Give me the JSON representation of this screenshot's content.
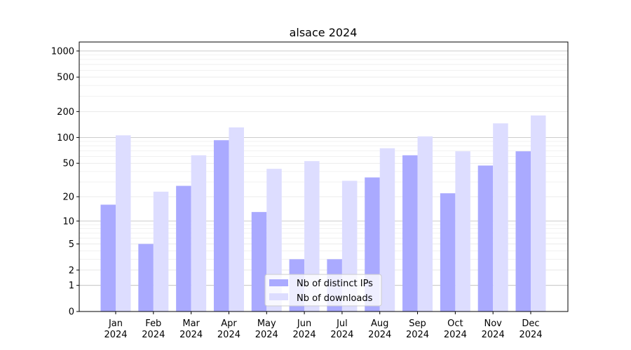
{
  "chart_data": {
    "type": "bar",
    "title": "alsace 2024",
    "xlabel": "",
    "ylabel": "",
    "yscale": "log(1+y)",
    "ylim": [
      0,
      1270
    ],
    "yticks": [
      0,
      1,
      2,
      5,
      10,
      20,
      50,
      100,
      200,
      500,
      1000
    ],
    "grid": true,
    "legend_position": "bottom-center",
    "categories": [
      "Jan\n2024",
      "Feb\n2024",
      "Mar\n2024",
      "Apr\n2024",
      "May\n2024",
      "Jun\n2024",
      "Jul\n2024",
      "Aug\n2024",
      "Sep\n2024",
      "Oct\n2024",
      "Nov\n2024",
      "Dec\n2024"
    ],
    "series": [
      {
        "name": "Nb of distinct IPs",
        "color": "#aaaaff",
        "values": [
          16,
          5,
          27,
          93,
          13,
          3,
          3,
          34,
          62,
          22,
          47,
          69
        ]
      },
      {
        "name": "Nb of downloads",
        "color": "#ddddff",
        "values": [
          106,
          23,
          62,
          131,
          43,
          53,
          31,
          75,
          103,
          69,
          146,
          180
        ]
      }
    ]
  }
}
